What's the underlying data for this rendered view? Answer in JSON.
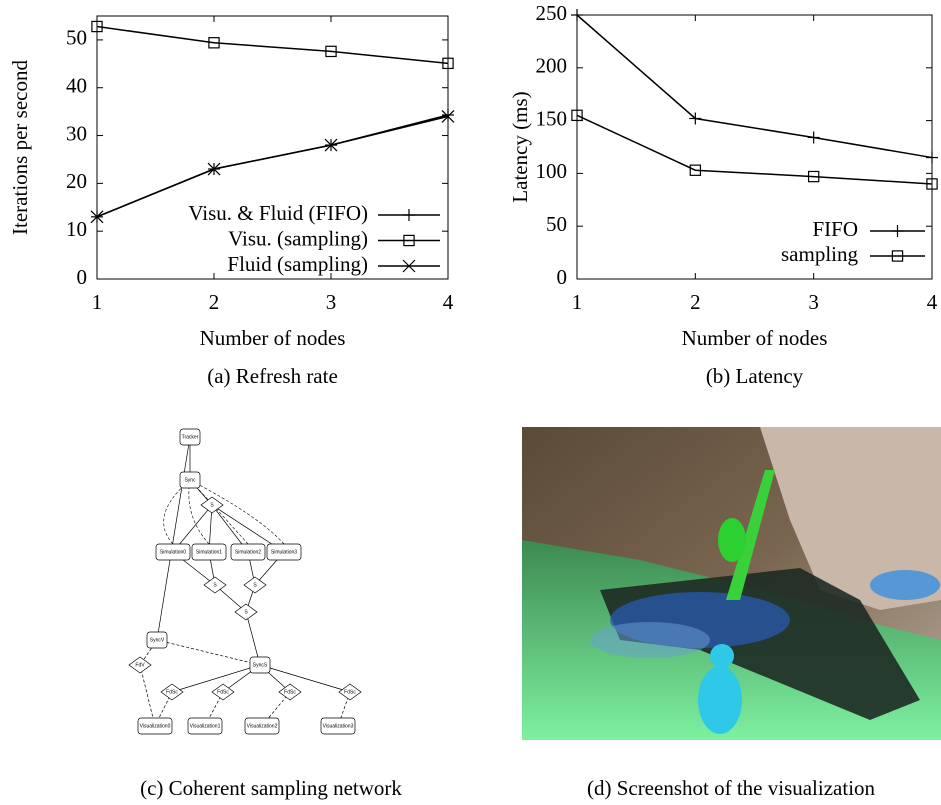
{
  "chart_data": [
    {
      "type": "line",
      "caption": "(a) Refresh rate",
      "xlabel": "Number of nodes",
      "ylabel": "Iterations per second",
      "x": [
        1,
        2,
        3,
        4
      ],
      "xlim": [
        1,
        4
      ],
      "xticks": [
        1,
        2,
        3,
        4
      ],
      "ylim": [
        0,
        55
      ],
      "yticks": [
        0,
        10,
        20,
        30,
        40,
        50
      ],
      "legend": "lower right",
      "series": [
        {
          "name": "Visu. & Fluid (FIFO)",
          "color": "#000000",
          "marker": "plus",
          "values": [
            13,
            23,
            28,
            34.3
          ]
        },
        {
          "name": "Visu. (sampling)",
          "color": "#000000",
          "marker": "square",
          "values": [
            52.8,
            49.4,
            47.6,
            45.1
          ]
        },
        {
          "name": "Fluid (sampling)",
          "color": "#000000",
          "marker": "x",
          "values": [
            13,
            23,
            28,
            34
          ]
        }
      ]
    },
    {
      "type": "line",
      "caption": "(b) Latency",
      "xlabel": "Number of nodes",
      "ylabel": "Latency (ms)",
      "x": [
        1,
        2,
        3,
        4
      ],
      "xlim": [
        1,
        4
      ],
      "xticks": [
        1,
        2,
        3,
        4
      ],
      "ylim": [
        0,
        250
      ],
      "yticks": [
        0,
        50,
        100,
        150,
        200,
        250
      ],
      "legend": "lower right",
      "series": [
        {
          "name": "FIFO",
          "color": "#000000",
          "marker": "plus",
          "values": [
            250,
            152,
            134,
            115
          ]
        },
        {
          "name": "sampling",
          "color": "#000000",
          "marker": "square",
          "values": [
            155,
            103,
            97,
            90
          ]
        }
      ]
    }
  ],
  "panels": {
    "c": {
      "caption": "(c) Coherent sampling network",
      "nodes": [
        "Tracker",
        "Sync",
        "S",
        "Simulation0",
        "Simulation1",
        "Simulation2",
        "Simulation3",
        "S",
        "S",
        "S",
        "SyncV",
        "SyncS",
        "FdV",
        "FdSc",
        "FdSc",
        "FdSc",
        "FdSc",
        "Visualization0",
        "Visualization1",
        "Visualization2",
        "Visualization3"
      ]
    },
    "d": {
      "caption": "(d) Screenshot of the visualization"
    }
  }
}
